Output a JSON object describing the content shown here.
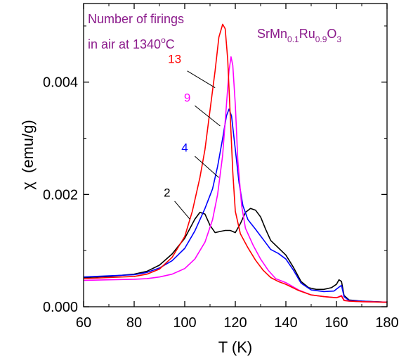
{
  "chart_data": {
    "type": "line",
    "xlabel": "T (K)",
    "ylabel_symbol": "χ",
    "ylabel_unit": "(emu/g)",
    "xlim": [
      60,
      180
    ],
    "ylim": [
      0,
      0.0054
    ],
    "xticks": [
      60,
      80,
      100,
      120,
      140,
      160,
      180
    ],
    "xtick_labels": [
      "60",
      "80",
      "100",
      "120",
      "140",
      "160",
      "180"
    ],
    "yticks": [
      0,
      0.002,
      0.004
    ],
    "ytick_labels": [
      "0.000",
      "0.002",
      "0.004"
    ],
    "grid": false,
    "legend_title": {
      "line1": "Number of firings",
      "line2_prefix": "in air at 1340",
      "line2_sup": "o",
      "line2_suffix": "C",
      "color": "#8b1a8b"
    },
    "compound": {
      "base": "SrMn",
      "sub1": "0.1",
      "mid": "Ru",
      "sub2": "0.9",
      "tail": "O",
      "sub3": "3",
      "color": "#8b1a8b"
    },
    "series": [
      {
        "name": "2",
        "color": "#000000",
        "label_at": [
          93,
          0.00196
        ],
        "pointer_from": [
          96,
          0.00188
        ],
        "pointer_to": [
          102,
          0.00156
        ],
        "points": [
          [
            60,
            0.00052
          ],
          [
            70,
            0.00054
          ],
          [
            80,
            0.00058
          ],
          [
            85,
            0.00063
          ],
          [
            90,
            0.00074
          ],
          [
            95,
            0.00094
          ],
          [
            100,
            0.00122
          ],
          [
            104,
            0.00156
          ],
          [
            106,
            0.00168
          ],
          [
            108,
            0.00165
          ],
          [
            110,
            0.00145
          ],
          [
            112,
            0.00132
          ],
          [
            114,
            0.00134
          ],
          [
            116,
            0.00136
          ],
          [
            118,
            0.00136
          ],
          [
            120,
            0.00132
          ],
          [
            122,
            0.00148
          ],
          [
            124,
            0.00168
          ],
          [
            126,
            0.00175
          ],
          [
            128,
            0.00172
          ],
          [
            130,
            0.0016
          ],
          [
            132,
            0.00138
          ],
          [
            134,
            0.00118
          ],
          [
            137,
            0.00105
          ],
          [
            140,
            0.00092
          ],
          [
            143,
            0.0007
          ],
          [
            146,
            0.00045
          ],
          [
            149,
            0.00034
          ],
          [
            152,
            0.00031
          ],
          [
            155,
            0.00031
          ],
          [
            158,
            0.00034
          ],
          [
            160,
            0.0004
          ],
          [
            161,
            0.00048
          ],
          [
            162,
            0.00045
          ],
          [
            163,
            0.0002
          ],
          [
            165,
            0.00012
          ],
          [
            170,
            0.0001
          ],
          [
            175,
            9e-05
          ],
          [
            180,
            8e-05
          ]
        ]
      },
      {
        "name": "4",
        "color": "#0000ff",
        "label_at": [
          100,
          0.00276
        ],
        "pointer_from": [
          104,
          0.00268
        ],
        "pointer_to": [
          113.5,
          0.0023
        ],
        "points": [
          [
            60,
            0.00053
          ],
          [
            70,
            0.00055
          ],
          [
            80,
            0.00057
          ],
          [
            85,
            0.00061
          ],
          [
            90,
            0.00069
          ],
          [
            95,
            0.00082
          ],
          [
            100,
            0.00104
          ],
          [
            104,
            0.00135
          ],
          [
            108,
            0.00175
          ],
          [
            111,
            0.0021
          ],
          [
            113,
            0.0025
          ],
          [
            115,
            0.003
          ],
          [
            116.5,
            0.0034
          ],
          [
            117.5,
            0.00352
          ],
          [
            118.5,
            0.0034
          ],
          [
            120,
            0.0028
          ],
          [
            121.5,
            0.0022
          ],
          [
            123,
            0.0018
          ],
          [
            125,
            0.00155
          ],
          [
            128,
            0.00138
          ],
          [
            131,
            0.0012
          ],
          [
            134,
            0.00102
          ],
          [
            137,
            0.00095
          ],
          [
            140,
            0.00085
          ],
          [
            143,
            0.00065
          ],
          [
            146,
            0.00042
          ],
          [
            150,
            0.0003
          ],
          [
            155,
            0.00027
          ],
          [
            159,
            0.00028
          ],
          [
            161,
            0.00035
          ],
          [
            162,
            0.00038
          ],
          [
            163,
            0.00018
          ],
          [
            165,
            0.00011
          ],
          [
            170,
            0.0001
          ],
          [
            180,
            8e-05
          ]
        ]
      },
      {
        "name": "9",
        "color": "#ff00ff",
        "label_at": [
          101,
          0.00365
        ],
        "pointer_from": [
          104,
          0.00358
        ],
        "pointer_to": [
          114,
          0.00322
        ],
        "points": [
          [
            60,
            0.00047
          ],
          [
            70,
            0.00048
          ],
          [
            80,
            0.00049
          ],
          [
            85,
            0.0005
          ],
          [
            90,
            0.00053
          ],
          [
            95,
            0.00058
          ],
          [
            100,
            0.00068
          ],
          [
            104,
            0.00085
          ],
          [
            108,
            0.00115
          ],
          [
            111,
            0.00155
          ],
          [
            113,
            0.002
          ],
          [
            115,
            0.0027
          ],
          [
            116.5,
            0.0036
          ],
          [
            117.5,
            0.0042
          ],
          [
            118.3,
            0.00445
          ],
          [
            119,
            0.0043
          ],
          [
            120,
            0.0036
          ],
          [
            121,
            0.0026
          ],
          [
            122.5,
            0.0018
          ],
          [
            124,
            0.0014
          ],
          [
            127,
            0.0011
          ],
          [
            130,
            0.00085
          ],
          [
            133,
            0.00065
          ],
          [
            136,
            0.0005
          ],
          [
            140,
            0.00043
          ],
          [
            145,
            0.0003
          ],
          [
            150,
            0.00021
          ],
          [
            155,
            0.00018
          ],
          [
            160,
            0.00016
          ],
          [
            162,
            0.0002
          ],
          [
            163,
            0.00012
          ],
          [
            165,
            0.0001
          ],
          [
            170,
            9e-05
          ],
          [
            180,
            8e-05
          ]
        ]
      },
      {
        "name": "13",
        "color": "#ff0000",
        "label_at": [
          96,
          0.00434
        ],
        "pointer_from": [
          101,
          0.0042
        ],
        "pointer_to": [
          112,
          0.0039
        ],
        "points": [
          [
            60,
            0.0005
          ],
          [
            70,
            0.00052
          ],
          [
            80,
            0.00054
          ],
          [
            85,
            0.00058
          ],
          [
            90,
            0.00067
          ],
          [
            95,
            0.00088
          ],
          [
            100,
            0.00125
          ],
          [
            103,
            0.0017
          ],
          [
            106,
            0.0023
          ],
          [
            108,
            0.0028
          ],
          [
            110,
            0.0035
          ],
          [
            112,
            0.0042
          ],
          [
            113.5,
            0.0048
          ],
          [
            115,
            0.00503
          ],
          [
            116,
            0.00495
          ],
          [
            117,
            0.0044
          ],
          [
            118,
            0.0034
          ],
          [
            119,
            0.0024
          ],
          [
            120,
            0.0017
          ],
          [
            122,
            0.0013
          ],
          [
            125,
            0.00105
          ],
          [
            128,
            0.00083
          ],
          [
            131,
            0.00065
          ],
          [
            134,
            0.00052
          ],
          [
            137,
            0.00045
          ],
          [
            140,
            0.0004
          ],
          [
            145,
            0.00029
          ],
          [
            150,
            0.00021
          ],
          [
            155,
            0.00018
          ],
          [
            160,
            0.00016
          ],
          [
            162,
            0.00019
          ],
          [
            163,
            0.00011
          ],
          [
            165,
            0.0001
          ],
          [
            170,
            9e-05
          ],
          [
            180,
            8e-05
          ]
        ]
      }
    ]
  }
}
